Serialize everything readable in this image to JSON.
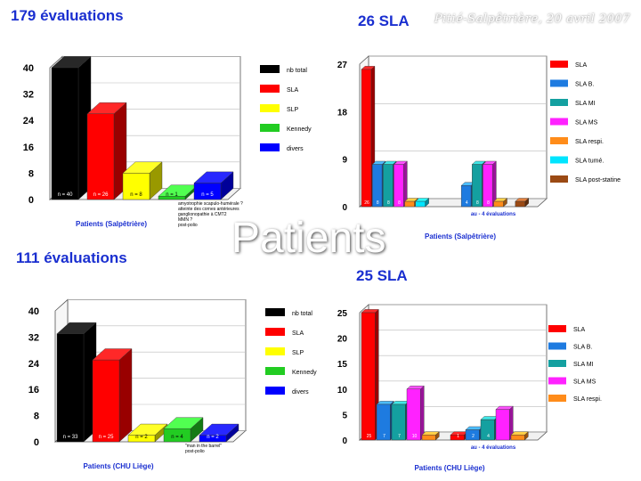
{
  "slide": {
    "subtitle": "Pitié-Salpêtrière, 20 avril 2007",
    "watermark": "Patients"
  },
  "chart_data": [
    {
      "id": "tl",
      "type": "bar",
      "title": "179 évaluations",
      "xlabel": "Patients (Salpêtrière)",
      "ylabel": "",
      "ylim": [
        0,
        40
      ],
      "yticks": [
        0,
        8,
        16,
        24,
        32,
        40
      ],
      "series": [
        {
          "name": "nb total",
          "color": "#000000",
          "value": 40,
          "label": "n = 40"
        },
        {
          "name": "SLA",
          "color": "#ff0000",
          "value": 26,
          "label": "n = 26"
        },
        {
          "name": "SLP",
          "color": "#ffff00",
          "value": 8,
          "label": "n = 8"
        },
        {
          "name": "Kennedy",
          "color": "#22cc22",
          "value": 1,
          "label": "n = 1"
        },
        {
          "name": "divers",
          "color": "#0000ff",
          "value": 5,
          "label": "n = 5"
        }
      ],
      "annotations": [
        "amyotrophie scapulo-humérale ?",
        "atteinte des cornes antérieures",
        "ganglionopathie à CMT2",
        "MMN ?",
        "post-polio"
      ]
    },
    {
      "id": "tr",
      "type": "bar",
      "title": "26 SLA",
      "xlabel": "Patients (Salpêtrière)",
      "ylabel": "",
      "ylim": [
        0,
        27
      ],
      "yticks": [
        0,
        9,
        18,
        27
      ],
      "groups": [
        {
          "name": "",
          "values": [
            26,
            8,
            8,
            8,
            1,
            1,
            0
          ],
          "labels": [
            "26",
            "8",
            "8",
            "8",
            "",
            "",
            ""
          ]
        },
        {
          "name": "au - 4 évaluations",
          "values": [
            0,
            4,
            8,
            8,
            1,
            0,
            1
          ],
          "labels": [
            "",
            "4",
            "8",
            "8",
            "",
            "",
            ""
          ]
        }
      ],
      "legend": [
        {
          "name": "SLA",
          "color": "#ff0000"
        },
        {
          "name": "SLA B.",
          "color": "#1e7be0"
        },
        {
          "name": "SLA MI",
          "color": "#14a0a0"
        },
        {
          "name": "SLA MS",
          "color": "#ff22ff"
        },
        {
          "name": "SLA respi.",
          "color": "#ff8c1a"
        },
        {
          "name": "SLA tumé.",
          "color": "#00e5ff"
        },
        {
          "name": "SLA post-statine",
          "color": "#9b4a14"
        }
      ]
    },
    {
      "id": "bl",
      "type": "bar",
      "title": "111 évaluations",
      "xlabel": "Patients (CHU Liège)",
      "ylabel": "",
      "ylim": [
        0,
        40
      ],
      "yticks": [
        0,
        8,
        16,
        24,
        32,
        40
      ],
      "series": [
        {
          "name": "nb total",
          "color": "#000000",
          "value": 33,
          "label": "n = 33"
        },
        {
          "name": "SLA",
          "color": "#ff0000",
          "value": 25,
          "label": "n = 25"
        },
        {
          "name": "SLP",
          "color": "#ffff00",
          "value": 2,
          "label": "n = 2"
        },
        {
          "name": "Kennedy",
          "color": "#22cc22",
          "value": 4,
          "label": "n = 4"
        },
        {
          "name": "divers",
          "color": "#0000ff",
          "value": 2,
          "label": "n = 2"
        }
      ],
      "annotations": [
        "\"man in the barrel\"",
        "post-polio"
      ]
    },
    {
      "id": "br",
      "type": "bar",
      "title": "25 SLA",
      "xlabel": "Patients (CHU Liège)",
      "ylabel": "",
      "ylim": [
        0,
        25
      ],
      "yticks": [
        0,
        5,
        10,
        15,
        20,
        25
      ],
      "groups": [
        {
          "name": "",
          "values": [
            25,
            7,
            7,
            10,
            1
          ],
          "labels": [
            "25",
            "7",
            "7",
            "10",
            ""
          ]
        },
        {
          "name": "au - 4 évaluations",
          "values": [
            1,
            2,
            4,
            6,
            1
          ],
          "labels": [
            "1",
            "2",
            "4",
            "",
            ""
          ]
        }
      ],
      "legend": [
        {
          "name": "SLA",
          "color": "#ff0000"
        },
        {
          "name": "SLA B.",
          "color": "#1e7be0"
        },
        {
          "name": "SLA MI",
          "color": "#14a0a0"
        },
        {
          "name": "SLA MS",
          "color": "#ff22ff"
        },
        {
          "name": "SLA respi.",
          "color": "#ff8c1a"
        }
      ]
    }
  ]
}
